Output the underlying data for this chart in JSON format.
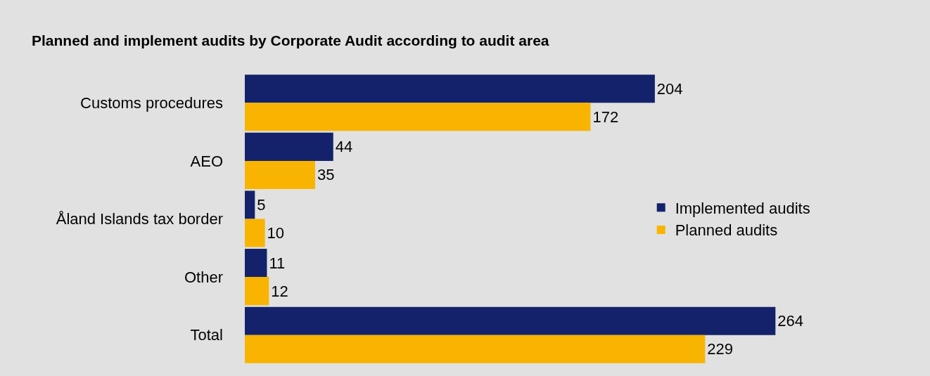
{
  "chart_data": {
    "type": "bar",
    "orientation": "horizontal",
    "title": "Planned and implement audits by Corporate Audit according to audit area",
    "categories": [
      "Customs procedures",
      "AEO",
      "Åland Islands tax border",
      "Other",
      "Total"
    ],
    "series": [
      {
        "name": "Implemented audits",
        "color": "#13226a",
        "values": [
          204,
          44,
          5,
          11,
          264
        ]
      },
      {
        "name": "Planned audits",
        "color": "#f8b400",
        "values": [
          172,
          35,
          10,
          12,
          229
        ]
      }
    ],
    "data_labels": true,
    "legend": "right",
    "tick_labels": "y"
  }
}
